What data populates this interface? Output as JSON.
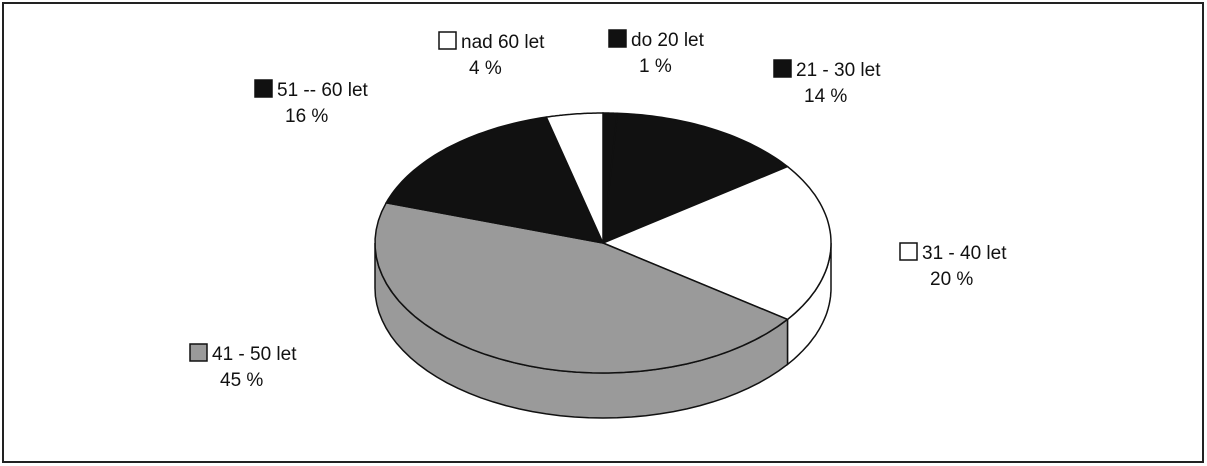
{
  "chart_data": {
    "type": "pie",
    "categories": [
      "do 20 let",
      "21 - 30 let",
      "31 - 40 let",
      "41 - 50 let",
      "51 -- 60 let",
      "nad 60 let"
    ],
    "values": [
      1,
      14,
      20,
      45,
      16,
      4
    ],
    "value_labels": [
      "1 %",
      "14 %",
      "20 %",
      "45 %",
      "16 %",
      "4 %"
    ],
    "colors": [
      "#111111",
      "#111111",
      "#ffffff",
      "#9a9a9a",
      "#111111",
      "#ffffff"
    ]
  }
}
